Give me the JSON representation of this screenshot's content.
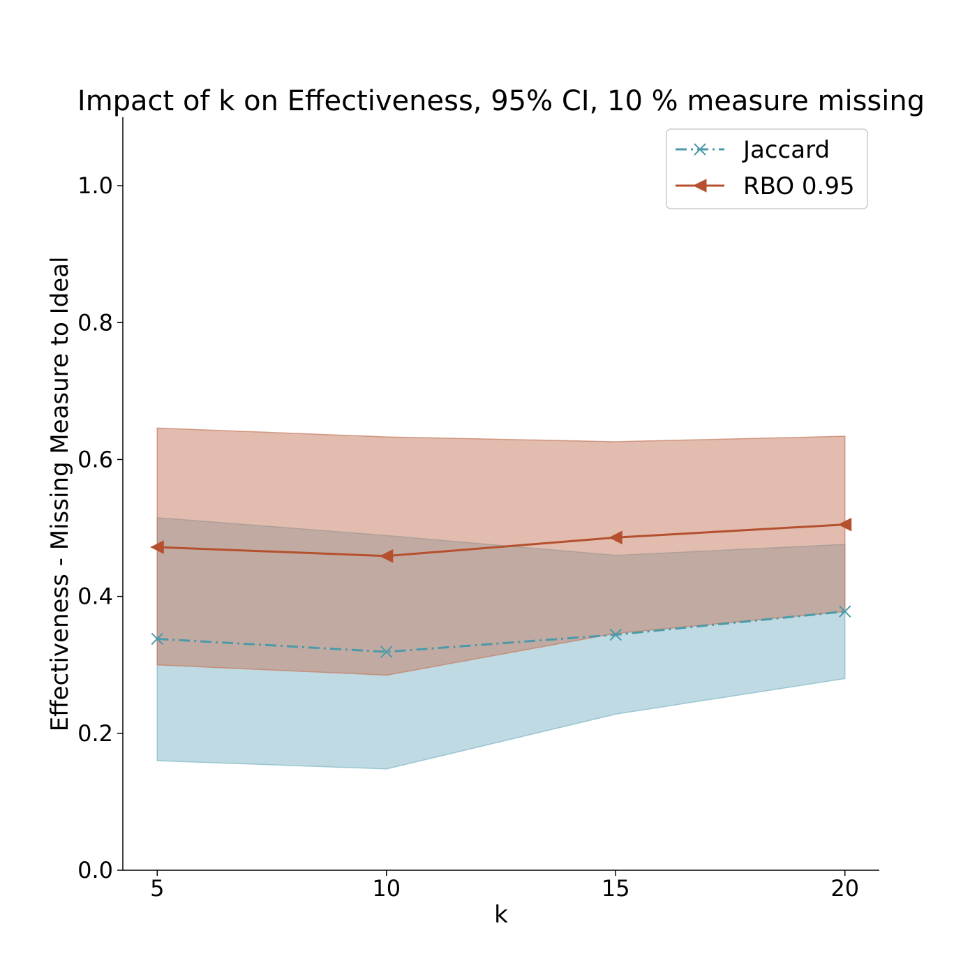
{
  "chart_data": {
    "type": "line",
    "title": "Impact of k on Effectiveness, 95% CI, 10 % measure missing",
    "xlabel": "k",
    "ylabel": "Effectiveness - Missing Measure to Ideal",
    "x": [
      5,
      10,
      15,
      20
    ],
    "xticks": [
      "5",
      "10",
      "15",
      "20"
    ],
    "yticks": [
      "0.0",
      "0.2",
      "0.4",
      "0.6",
      "0.8",
      "1.0"
    ],
    "xlim": [
      4.25,
      20.75
    ],
    "ylim": [
      0.0,
      1.1
    ],
    "grid": false,
    "legend_position": "top-right",
    "series": [
      {
        "name": "Jaccard",
        "values": [
          0.338,
          0.319,
          0.344,
          0.378
        ],
        "ci_lower": [
          0.16,
          0.148,
          0.228,
          0.28
        ],
        "ci_upper": [
          0.515,
          0.489,
          0.46,
          0.476
        ],
        "color": "#4a9aaa",
        "band_color": "#7fb6c5",
        "line_style": "dash-dot",
        "marker": "x"
      },
      {
        "name": "RBO 0.95",
        "values": [
          0.472,
          0.459,
          0.486,
          0.505
        ],
        "ci_lower": [
          0.3,
          0.285,
          0.346,
          0.378
        ],
        "ci_upper": [
          0.646,
          0.633,
          0.626,
          0.634
        ],
        "color": "#b5502e",
        "band_color": "#c47a5f",
        "line_style": "solid",
        "marker": "triangle-left"
      }
    ]
  }
}
